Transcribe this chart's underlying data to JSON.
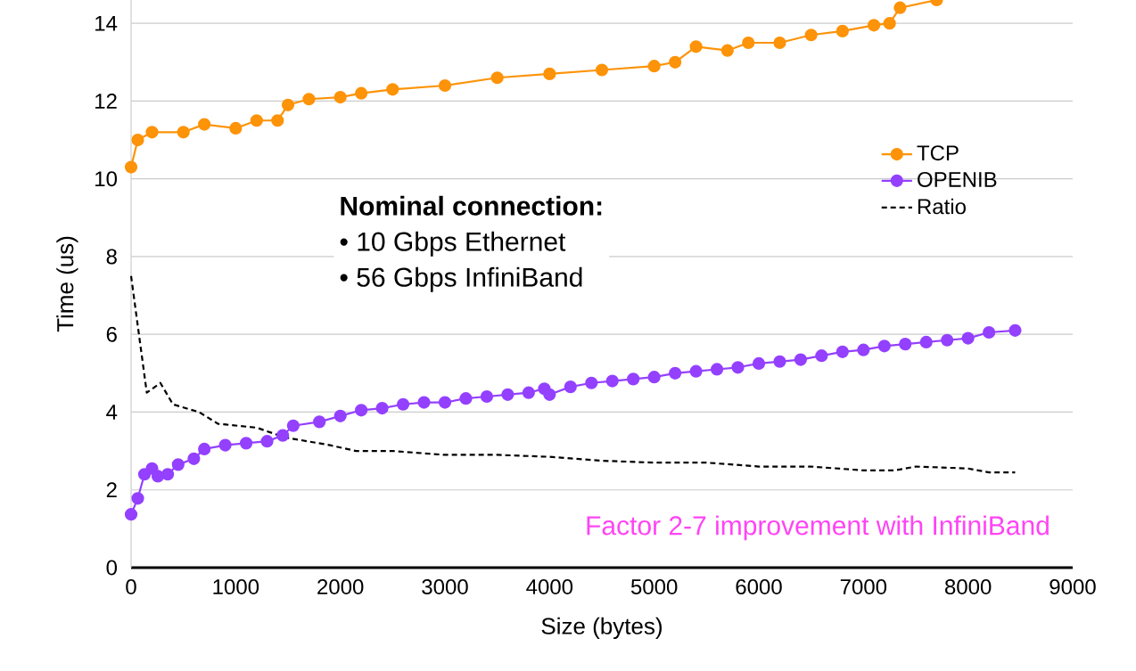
{
  "chart_data": {
    "type": "line",
    "xlabel": "Size (bytes)",
    "ylabel": "Time (us)",
    "xlim": [
      0,
      9000
    ],
    "ylim": [
      0,
      14.6
    ],
    "xticks": [
      0,
      1000,
      2000,
      3000,
      4000,
      5000,
      6000,
      7000,
      8000,
      9000
    ],
    "yticks": [
      0,
      2,
      4,
      6,
      8,
      10,
      12,
      14
    ],
    "grid": "y",
    "legend": "top right",
    "marker": "circle",
    "annotations": [
      "Nominal connection:",
      "• 10 Gbps Ethernet",
      "• 56 Gbps InfiniBand",
      "Factor 2-7 improvement with InfiniBand"
    ],
    "series": [
      {
        "name": "TCP",
        "color": "#fd9308",
        "x": [
          0,
          64,
          200,
          500,
          700,
          1000,
          1200,
          1400,
          1500,
          1700,
          2000,
          2200,
          2500,
          3000,
          3500,
          4000,
          4500,
          5000,
          5200,
          5400,
          5700,
          5900,
          6200,
          6500,
          6800,
          7100,
          7250,
          7350,
          7700
        ],
        "values": [
          10.3,
          11.0,
          11.2,
          11.2,
          11.4,
          11.3,
          11.5,
          11.5,
          11.9,
          12.05,
          12.1,
          12.2,
          12.3,
          12.4,
          12.6,
          12.7,
          12.8,
          12.9,
          13.0,
          13.4,
          13.3,
          13.5,
          13.5,
          13.7,
          13.8,
          13.95,
          14.0,
          14.4,
          14.6
        ]
      },
      {
        "name": "OPENIB",
        "color": "#9440ff",
        "x": [
          0,
          64,
          128,
          200,
          256,
          350,
          450,
          600,
          700,
          900,
          1100,
          1300,
          1450,
          1550,
          1800,
          2000,
          2200,
          2400,
          2600,
          2800,
          3000,
          3200,
          3400,
          3600,
          3800,
          3950,
          4000,
          4200,
          4400,
          4600,
          4800,
          5000,
          5200,
          5400,
          5600,
          5800,
          6000,
          6200,
          6400,
          6600,
          6800,
          7000,
          7200,
          7400,
          7600,
          7800,
          8000,
          8200,
          8450
        ],
        "values": [
          1.37,
          1.78,
          2.4,
          2.55,
          2.35,
          2.4,
          2.65,
          2.8,
          3.05,
          3.15,
          3.2,
          3.25,
          3.4,
          3.65,
          3.75,
          3.9,
          4.05,
          4.1,
          4.2,
          4.25,
          4.25,
          4.35,
          4.4,
          4.45,
          4.5,
          4.6,
          4.45,
          4.65,
          4.75,
          4.8,
          4.85,
          4.9,
          5.0,
          5.05,
          5.1,
          5.15,
          5.25,
          5.3,
          5.35,
          5.45,
          5.55,
          5.6,
          5.7,
          5.75,
          5.8,
          5.85,
          5.9,
          6.05,
          6.1
        ]
      },
      {
        "name": "Ratio",
        "color": "#000000",
        "marker": "none",
        "line_style": "dashed",
        "x": [
          0,
          150,
          280,
          400,
          650,
          830,
          1200,
          1470,
          1900,
          2150,
          2500,
          3000,
          3500,
          4000,
          4500,
          5000,
          5500,
          6000,
          6500,
          7000,
          7300,
          7500,
          8000,
          8200,
          8450
        ],
        "values": [
          7.5,
          4.5,
          4.75,
          4.2,
          4.0,
          3.7,
          3.6,
          3.35,
          3.15,
          3.0,
          3.0,
          2.9,
          2.9,
          2.85,
          2.75,
          2.7,
          2.7,
          2.6,
          2.6,
          2.5,
          2.5,
          2.6,
          2.55,
          2.45,
          2.45
        ]
      }
    ]
  }
}
